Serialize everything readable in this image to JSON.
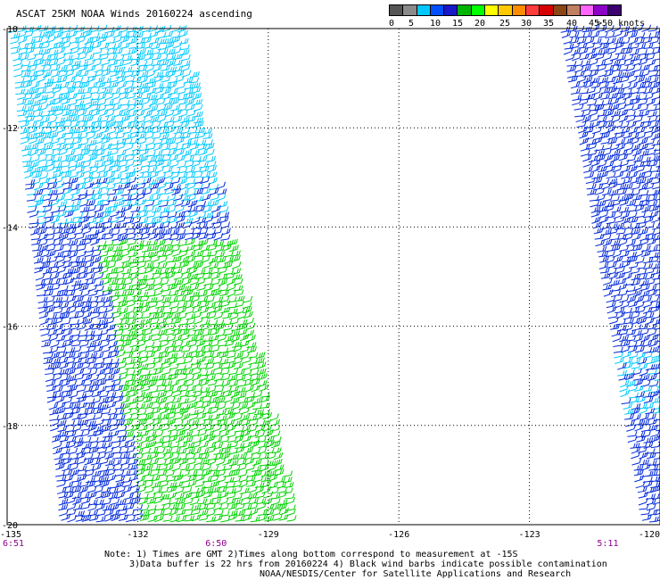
{
  "title": "ASCAT 25KM NOAA Winds 20160224 ascending",
  "legend": {
    "colors": [
      "#555555",
      "#8a8a8a",
      "#00c8ff",
      "#0050ff",
      "#1818c8",
      "#00b400",
      "#00ff00",
      "#ffff00",
      "#ffc800",
      "#ff8c00",
      "#ff3c3c",
      "#d70000",
      "#8b4513",
      "#c08060",
      "#ff64ff",
      "#8c00c8",
      "#3c0070"
    ],
    "ticks": [
      "0",
      "5",
      "10",
      "15",
      "20",
      "25",
      "30",
      "35",
      "40",
      "45",
      ">50 knots"
    ]
  },
  "map": {
    "lat_labels": [
      "-10",
      "-12",
      "-14",
      "-16",
      "-18",
      "-20"
    ],
    "lon_labels": [
      "-135",
      "-132",
      "-129",
      "-126",
      "-123",
      "-120"
    ],
    "lon_range": [
      -135,
      -120
    ],
    "lat_range": [
      -10,
      -20
    ],
    "grid_lons": [
      -132,
      -129,
      -126,
      -123
    ],
    "grid_lats": [
      -12,
      -14,
      -16,
      -18
    ],
    "times": [
      {
        "label": "6:51",
        "lon": -135
      },
      {
        "label": "6:50",
        "lon": -130.2
      },
      {
        "label": "5:11",
        "lon": -121.2
      }
    ],
    "swaths": [
      {
        "name": "western-swath",
        "colors": [
          "#00c8ff",
          "#0028d8",
          "#00d200"
        ]
      },
      {
        "name": "eastern-swath",
        "colors": [
          "#0028d8",
          "#00c8ff"
        ]
      }
    ]
  },
  "notes": {
    "line1": "Note: 1) Times are GMT 2)Times along bottom correspond to measurement at -15S",
    "line2": "3)Data buffer is 22 hrs from 20160224 4) Black wind barbs indicate possible contamination",
    "line3": "NOAA/NESDIS/Center for Satellite Applications and Research"
  }
}
